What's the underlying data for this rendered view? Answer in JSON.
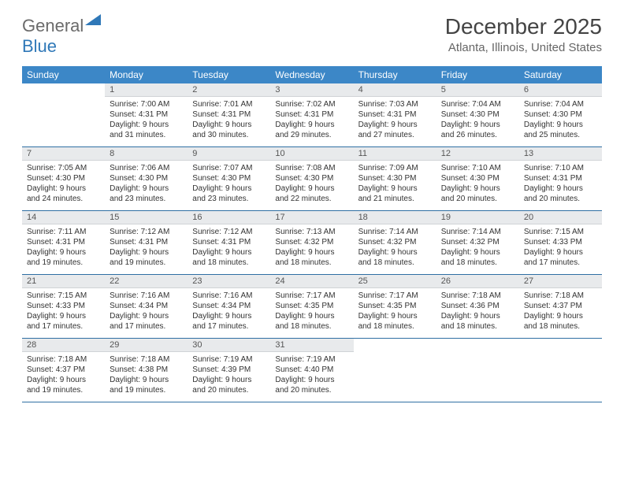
{
  "logo": {
    "general": "General",
    "blue": "Blue"
  },
  "title": "December 2025",
  "location": "Atlanta, Illinois, United States",
  "colors": {
    "header_bg": "#3c87c7",
    "header_text": "#ffffff",
    "daynum_bg": "#e8eaec",
    "row_border": "#2f6fa3",
    "logo_gray": "#6b6b6b",
    "logo_blue": "#2f78b8"
  },
  "weekdays": [
    "Sunday",
    "Monday",
    "Tuesday",
    "Wednesday",
    "Thursday",
    "Friday",
    "Saturday"
  ],
  "weeks": [
    [
      null,
      {
        "d": "1",
        "sr": "7:00 AM",
        "ss": "4:31 PM",
        "dl": "9 hours and 31 minutes."
      },
      {
        "d": "2",
        "sr": "7:01 AM",
        "ss": "4:31 PM",
        "dl": "9 hours and 30 minutes."
      },
      {
        "d": "3",
        "sr": "7:02 AM",
        "ss": "4:31 PM",
        "dl": "9 hours and 29 minutes."
      },
      {
        "d": "4",
        "sr": "7:03 AM",
        "ss": "4:31 PM",
        "dl": "9 hours and 27 minutes."
      },
      {
        "d": "5",
        "sr": "7:04 AM",
        "ss": "4:30 PM",
        "dl": "9 hours and 26 minutes."
      },
      {
        "d": "6",
        "sr": "7:04 AM",
        "ss": "4:30 PM",
        "dl": "9 hours and 25 minutes."
      }
    ],
    [
      {
        "d": "7",
        "sr": "7:05 AM",
        "ss": "4:30 PM",
        "dl": "9 hours and 24 minutes."
      },
      {
        "d": "8",
        "sr": "7:06 AM",
        "ss": "4:30 PM",
        "dl": "9 hours and 23 minutes."
      },
      {
        "d": "9",
        "sr": "7:07 AM",
        "ss": "4:30 PM",
        "dl": "9 hours and 23 minutes."
      },
      {
        "d": "10",
        "sr": "7:08 AM",
        "ss": "4:30 PM",
        "dl": "9 hours and 22 minutes."
      },
      {
        "d": "11",
        "sr": "7:09 AM",
        "ss": "4:30 PM",
        "dl": "9 hours and 21 minutes."
      },
      {
        "d": "12",
        "sr": "7:10 AM",
        "ss": "4:30 PM",
        "dl": "9 hours and 20 minutes."
      },
      {
        "d": "13",
        "sr": "7:10 AM",
        "ss": "4:31 PM",
        "dl": "9 hours and 20 minutes."
      }
    ],
    [
      {
        "d": "14",
        "sr": "7:11 AM",
        "ss": "4:31 PM",
        "dl": "9 hours and 19 minutes."
      },
      {
        "d": "15",
        "sr": "7:12 AM",
        "ss": "4:31 PM",
        "dl": "9 hours and 19 minutes."
      },
      {
        "d": "16",
        "sr": "7:12 AM",
        "ss": "4:31 PM",
        "dl": "9 hours and 18 minutes."
      },
      {
        "d": "17",
        "sr": "7:13 AM",
        "ss": "4:32 PM",
        "dl": "9 hours and 18 minutes."
      },
      {
        "d": "18",
        "sr": "7:14 AM",
        "ss": "4:32 PM",
        "dl": "9 hours and 18 minutes."
      },
      {
        "d": "19",
        "sr": "7:14 AM",
        "ss": "4:32 PM",
        "dl": "9 hours and 18 minutes."
      },
      {
        "d": "20",
        "sr": "7:15 AM",
        "ss": "4:33 PM",
        "dl": "9 hours and 17 minutes."
      }
    ],
    [
      {
        "d": "21",
        "sr": "7:15 AM",
        "ss": "4:33 PM",
        "dl": "9 hours and 17 minutes."
      },
      {
        "d": "22",
        "sr": "7:16 AM",
        "ss": "4:34 PM",
        "dl": "9 hours and 17 minutes."
      },
      {
        "d": "23",
        "sr": "7:16 AM",
        "ss": "4:34 PM",
        "dl": "9 hours and 17 minutes."
      },
      {
        "d": "24",
        "sr": "7:17 AM",
        "ss": "4:35 PM",
        "dl": "9 hours and 18 minutes."
      },
      {
        "d": "25",
        "sr": "7:17 AM",
        "ss": "4:35 PM",
        "dl": "9 hours and 18 minutes."
      },
      {
        "d": "26",
        "sr": "7:18 AM",
        "ss": "4:36 PM",
        "dl": "9 hours and 18 minutes."
      },
      {
        "d": "27",
        "sr": "7:18 AM",
        "ss": "4:37 PM",
        "dl": "9 hours and 18 minutes."
      }
    ],
    [
      {
        "d": "28",
        "sr": "7:18 AM",
        "ss": "4:37 PM",
        "dl": "9 hours and 19 minutes."
      },
      {
        "d": "29",
        "sr": "7:18 AM",
        "ss": "4:38 PM",
        "dl": "9 hours and 19 minutes."
      },
      {
        "d": "30",
        "sr": "7:19 AM",
        "ss": "4:39 PM",
        "dl": "9 hours and 20 minutes."
      },
      {
        "d": "31",
        "sr": "7:19 AM",
        "ss": "4:40 PM",
        "dl": "9 hours and 20 minutes."
      },
      null,
      null,
      null
    ]
  ],
  "labels": {
    "sunrise": "Sunrise:",
    "sunset": "Sunset:",
    "daylight": "Daylight:"
  }
}
